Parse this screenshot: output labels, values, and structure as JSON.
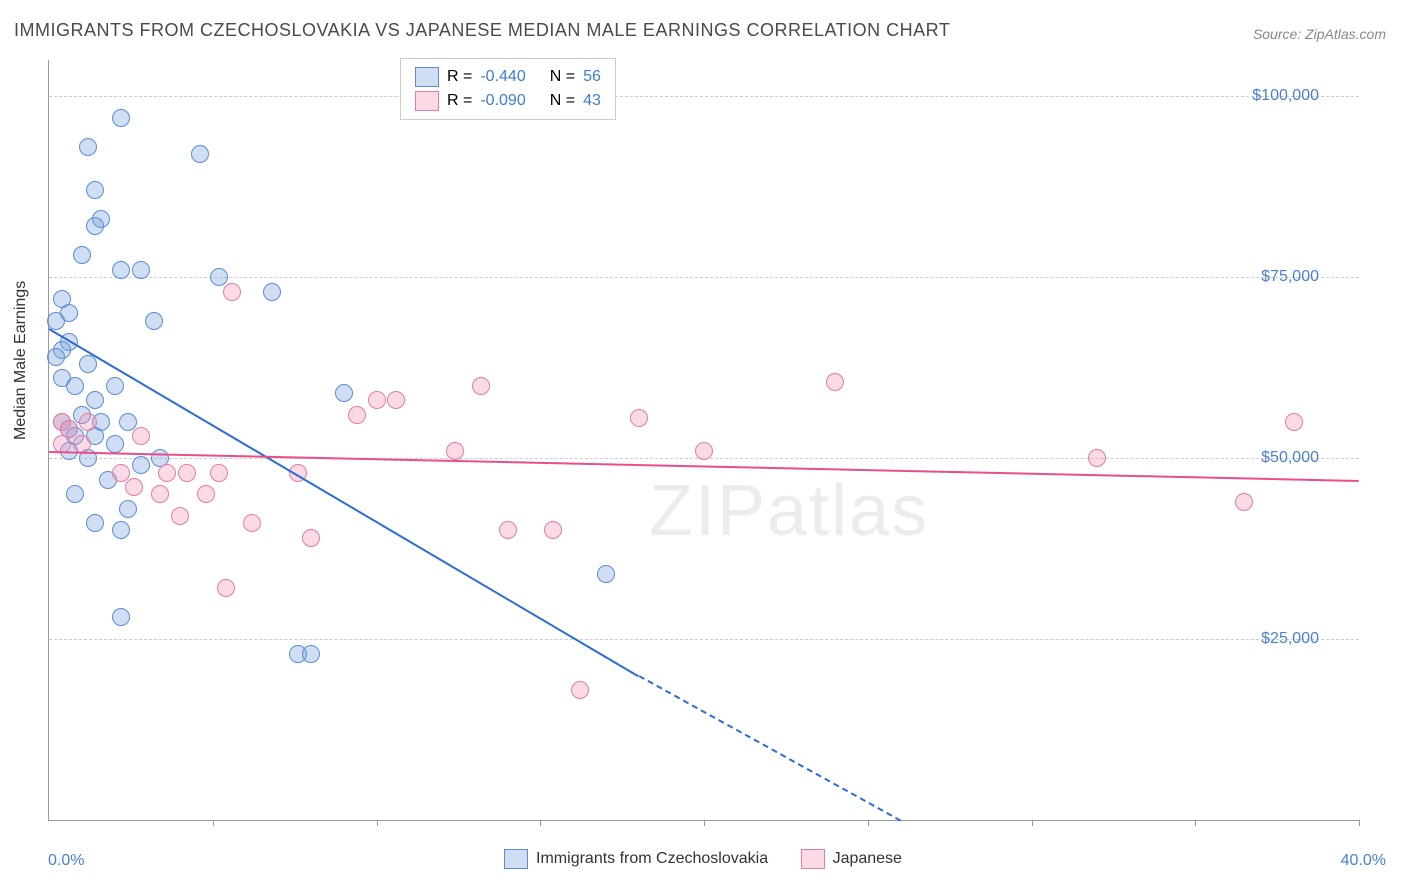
{
  "title": "IMMIGRANTS FROM CZECHOSLOVAKIA VS JAPANESE MEDIAN MALE EARNINGS CORRELATION CHART",
  "source_label": "Source: ZipAtlas.com",
  "watermark": "ZIPatlas",
  "chart": {
    "type": "scatter",
    "ylabel": "Median Male Earnings",
    "xlim": [
      0,
      40
    ],
    "ylim": [
      0,
      105000
    ],
    "xtick_labels": {
      "min": "0.0%",
      "max": "40.0%"
    },
    "xtick_positions": [
      0,
      5,
      10,
      15,
      20,
      25,
      30,
      35,
      40
    ],
    "yticks": [
      {
        "value": 25000,
        "label": "$25,000"
      },
      {
        "value": 50000,
        "label": "$50,000"
      },
      {
        "value": 75000,
        "label": "$75,000"
      },
      {
        "value": 100000,
        "label": "$100,000"
      }
    ],
    "series": [
      {
        "name": "Immigrants from Czechoslovakia",
        "key": "blue",
        "color_fill": "rgba(120,160,220,0.35)",
        "color_stroke": "#5b8dd6",
        "trend_color": "#2d6cd6",
        "R": "-0.440",
        "N": "56",
        "marker_radius": 8,
        "trend": {
          "x1": 0,
          "y1": 68000,
          "x2": 18,
          "y2": 20000,
          "dash_x2": 26,
          "dash_y2": 0
        },
        "points": [
          {
            "x": 2.2,
            "y": 97000
          },
          {
            "x": 1.2,
            "y": 93000
          },
          {
            "x": 4.6,
            "y": 92000
          },
          {
            "x": 1.4,
            "y": 87000
          },
          {
            "x": 1.6,
            "y": 83000
          },
          {
            "x": 1.4,
            "y": 82000
          },
          {
            "x": 1.0,
            "y": 78000
          },
          {
            "x": 2.2,
            "y": 76000
          },
          {
            "x": 2.8,
            "y": 76000
          },
          {
            "x": 5.2,
            "y": 75000
          },
          {
            "x": 6.8,
            "y": 73000
          },
          {
            "x": 0.4,
            "y": 72000
          },
          {
            "x": 0.6,
            "y": 70000
          },
          {
            "x": 0.2,
            "y": 69000
          },
          {
            "x": 3.2,
            "y": 69000
          },
          {
            "x": 0.6,
            "y": 66000
          },
          {
            "x": 0.4,
            "y": 65000
          },
          {
            "x": 0.2,
            "y": 64000
          },
          {
            "x": 1.2,
            "y": 63000
          },
          {
            "x": 0.4,
            "y": 61000
          },
          {
            "x": 0.8,
            "y": 60000
          },
          {
            "x": 2.0,
            "y": 60000
          },
          {
            "x": 9.0,
            "y": 59000
          },
          {
            "x": 1.4,
            "y": 58000
          },
          {
            "x": 1.0,
            "y": 56000
          },
          {
            "x": 0.4,
            "y": 55000
          },
          {
            "x": 0.6,
            "y": 54000
          },
          {
            "x": 1.6,
            "y": 55000
          },
          {
            "x": 2.4,
            "y": 55000
          },
          {
            "x": 0.8,
            "y": 53000
          },
          {
            "x": 1.4,
            "y": 53000
          },
          {
            "x": 2.0,
            "y": 52000
          },
          {
            "x": 0.6,
            "y": 51000
          },
          {
            "x": 1.2,
            "y": 50000
          },
          {
            "x": 2.8,
            "y": 49000
          },
          {
            "x": 3.4,
            "y": 50000
          },
          {
            "x": 1.8,
            "y": 47000
          },
          {
            "x": 0.8,
            "y": 45000
          },
          {
            "x": 2.4,
            "y": 43000
          },
          {
            "x": 1.4,
            "y": 41000
          },
          {
            "x": 2.2,
            "y": 40000
          },
          {
            "x": 17.0,
            "y": 34000
          },
          {
            "x": 2.2,
            "y": 28000
          },
          {
            "x": 7.6,
            "y": 23000
          },
          {
            "x": 8.0,
            "y": 23000
          }
        ]
      },
      {
        "name": "Japanese",
        "key": "pink",
        "color_fill": "rgba(240,150,180,0.35)",
        "color_stroke": "#e67ba3",
        "trend_color": "#e94d8a",
        "R": "-0.090",
        "N": "43",
        "marker_radius": 8,
        "trend": {
          "x1": 0,
          "y1": 51000,
          "x2": 40,
          "y2": 47000
        },
        "points": [
          {
            "x": 5.6,
            "y": 73000
          },
          {
            "x": 24.0,
            "y": 60500
          },
          {
            "x": 13.2,
            "y": 60000
          },
          {
            "x": 10.0,
            "y": 58000
          },
          {
            "x": 10.6,
            "y": 58000
          },
          {
            "x": 9.4,
            "y": 56000
          },
          {
            "x": 18.0,
            "y": 55500
          },
          {
            "x": 38.0,
            "y": 55000
          },
          {
            "x": 0.4,
            "y": 55000
          },
          {
            "x": 1.2,
            "y": 55000
          },
          {
            "x": 0.6,
            "y": 54000
          },
          {
            "x": 2.8,
            "y": 53000
          },
          {
            "x": 0.4,
            "y": 52000
          },
          {
            "x": 1.0,
            "y": 52000
          },
          {
            "x": 20.0,
            "y": 51000
          },
          {
            "x": 12.4,
            "y": 51000
          },
          {
            "x": 32.0,
            "y": 50000
          },
          {
            "x": 2.2,
            "y": 48000
          },
          {
            "x": 3.6,
            "y": 48000
          },
          {
            "x": 4.2,
            "y": 48000
          },
          {
            "x": 5.2,
            "y": 48000
          },
          {
            "x": 7.6,
            "y": 48000
          },
          {
            "x": 2.6,
            "y": 46000
          },
          {
            "x": 3.4,
            "y": 45000
          },
          {
            "x": 4.8,
            "y": 45000
          },
          {
            "x": 36.5,
            "y": 44000
          },
          {
            "x": 4.0,
            "y": 42000
          },
          {
            "x": 6.2,
            "y": 41000
          },
          {
            "x": 14.0,
            "y": 40000
          },
          {
            "x": 15.4,
            "y": 40000
          },
          {
            "x": 8.0,
            "y": 39000
          },
          {
            "x": 5.4,
            "y": 32000
          },
          {
            "x": 16.2,
            "y": 18000
          }
        ]
      }
    ],
    "legend_top_labels": {
      "R": "R =",
      "N": "N ="
    },
    "value_color": "#3b7dd8"
  }
}
